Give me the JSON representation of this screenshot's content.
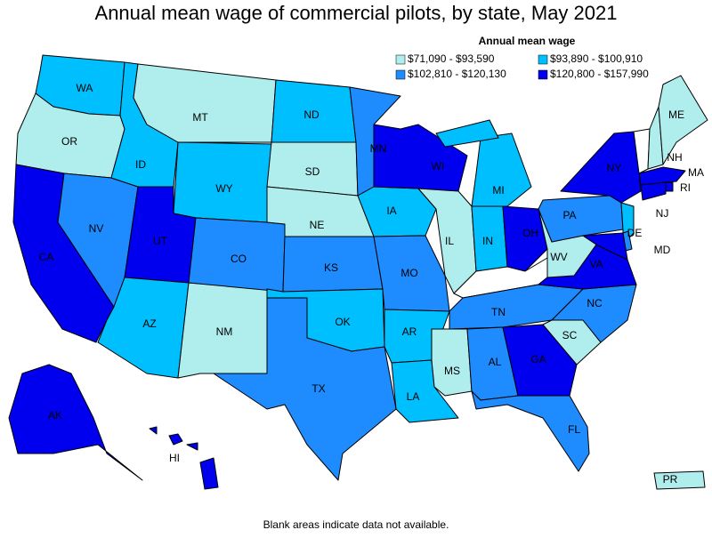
{
  "title": "Annual mean wage of commercial pilots, by state, May 2021",
  "legend": {
    "title": "Annual mean wage",
    "items": [
      {
        "label": "$71,090 - $93,590",
        "color": "#b0eeee"
      },
      {
        "label": "$93,890 - $100,910",
        "color": "#00bfff"
      },
      {
        "label": "$102,810 - $120,130",
        "color": "#1e8cff"
      },
      {
        "label": "$120,800 - $157,990",
        "color": "#0000ee"
      }
    ]
  },
  "states": [
    {
      "label": "WA",
      "class": 1
    },
    {
      "label": "OR",
      "class": 0
    },
    {
      "label": "CA",
      "class": 3
    },
    {
      "label": "NV",
      "class": 2
    },
    {
      "label": "ID",
      "class": 1
    },
    {
      "label": "MT",
      "class": 0
    },
    {
      "label": "WY",
      "class": 1
    },
    {
      "label": "UT",
      "class": 3
    },
    {
      "label": "AZ",
      "class": 1
    },
    {
      "label": "NM",
      "class": 0
    },
    {
      "label": "CO",
      "class": 2
    },
    {
      "label": "ND",
      "class": 1
    },
    {
      "label": "SD",
      "class": 0
    },
    {
      "label": "NE",
      "class": 0
    },
    {
      "label": "KS",
      "class": 2
    },
    {
      "label": "OK",
      "class": 1
    },
    {
      "label": "TX",
      "class": 2
    },
    {
      "label": "MN",
      "class": 2
    },
    {
      "label": "IA",
      "class": 1
    },
    {
      "label": "MO",
      "class": 2
    },
    {
      "label": "AR",
      "class": 1
    },
    {
      "label": "LA",
      "class": 1
    },
    {
      "label": "WI",
      "class": 3
    },
    {
      "label": "IL",
      "class": 0
    },
    {
      "label": "MI",
      "class": 1
    },
    {
      "label": "IN",
      "class": 1
    },
    {
      "label": "OH",
      "class": 3
    },
    {
      "label": null,
      "class": null
    },
    {
      "label": "TN",
      "class": 2
    },
    {
      "label": "MS",
      "class": 0
    },
    {
      "label": "AL",
      "class": 2
    },
    {
      "label": "GA",
      "class": 3
    },
    {
      "label": "FL",
      "class": 2
    },
    {
      "label": "SC",
      "class": 0
    },
    {
      "label": "NC",
      "class": 2
    },
    {
      "label": "VA",
      "class": 3
    },
    {
      "label": "WV",
      "class": 0
    },
    {
      "label": "PA",
      "class": 2
    },
    {
      "label": "NY",
      "class": 3
    },
    {
      "label": "NJ",
      "class": 1
    },
    {
      "label": "DE",
      "class": 2
    },
    {
      "label": "MD",
      "class": 3
    },
    {
      "label": null,
      "class": null
    },
    {
      "label": "NH",
      "class": 0
    },
    {
      "label": "ME",
      "class": 0
    },
    {
      "label": "MA",
      "class": 3
    },
    {
      "label": "RI",
      "class": 3
    },
    {
      "label": null,
      "class": 3
    },
    {
      "label": "AK",
      "class": 3
    },
    {
      "label": "HI",
      "class": 3
    },
    {
      "label": "PR",
      "class": 0
    }
  ],
  "footnote": "Blank areas indicate data not available."
}
